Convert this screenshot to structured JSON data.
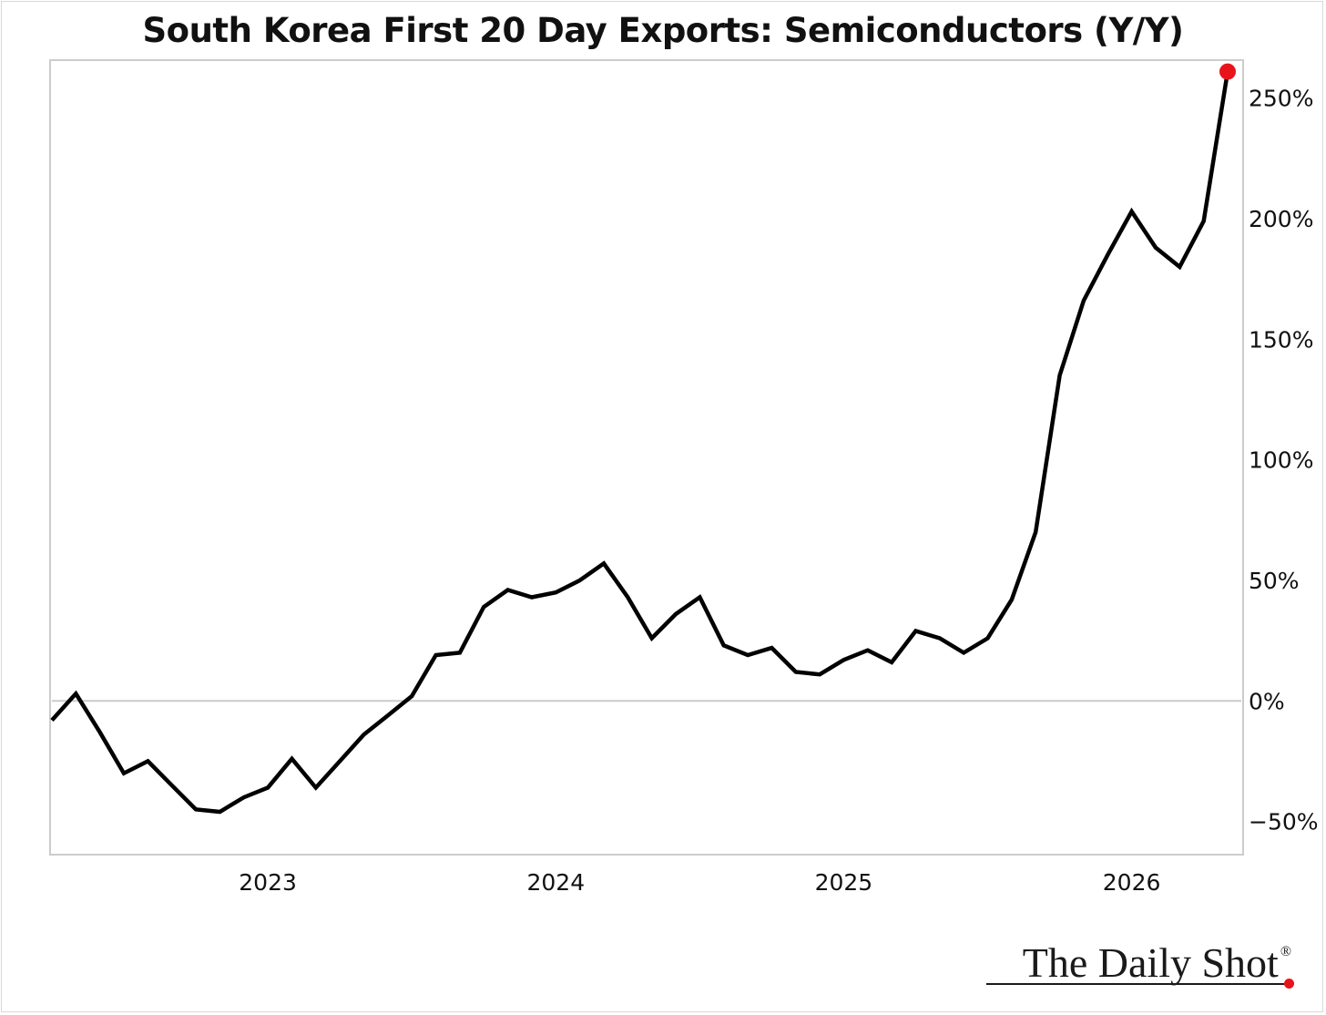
{
  "chart_data": {
    "type": "line",
    "title": "South Korea First 20 Day Exports: Semiconductors (Y/Y)",
    "xlabel": "",
    "ylabel": "",
    "y_unit": "%",
    "ylim": [
      -63,
      265
    ],
    "xlim": [
      "2022-09",
      "2026-10"
    ],
    "x_ticks": [
      "2023",
      "2024",
      "2025",
      "2026"
    ],
    "y_ticks": [
      -50,
      0,
      50,
      100,
      150,
      200,
      250
    ],
    "y_tick_labels": [
      "−50%",
      "0%",
      "50%",
      "100%",
      "150%",
      "200%",
      "250%"
    ],
    "grid": false,
    "zero_line": true,
    "axis_side": "right",
    "series": [
      {
        "color": "#000000",
        "x": [
          "2022-09",
          "2022-10",
          "2022-11",
          "2022-12",
          "2023-01",
          "2023-02",
          "2023-03",
          "2023-04",
          "2023-05",
          "2023-06",
          "2023-07",
          "2023-08",
          "2023-09",
          "2023-10",
          "2023-11",
          "2023-12",
          "2024-01",
          "2024-02",
          "2024-03",
          "2024-04",
          "2024-05",
          "2024-06",
          "2024-07",
          "2024-08",
          "2024-09",
          "2024-10",
          "2024-11",
          "2024-12",
          "2025-01",
          "2025-02",
          "2025-03",
          "2025-04",
          "2025-05",
          "2025-06",
          "2025-07",
          "2025-08",
          "2025-09",
          "2025-10",
          "2025-11",
          "2025-12",
          "2026-01",
          "2026-02",
          "2026-03",
          "2026-04",
          "2026-05",
          "2026-06",
          "2026-07",
          "2026-08",
          "2026-09",
          "2026-10"
        ],
        "values": [
          -8,
          3,
          -13,
          -30,
          -25,
          -35,
          -45,
          -46,
          -40,
          -36,
          -24,
          -36,
          -25,
          -14,
          -6,
          2,
          19,
          20,
          39,
          46,
          43,
          45,
          50,
          57,
          43,
          26,
          36,
          43,
          23,
          19,
          22,
          12,
          11,
          17,
          21,
          16,
          29,
          26,
          20,
          26,
          42,
          70,
          135,
          166,
          185,
          203,
          188,
          180,
          199,
          261
        ]
      }
    ],
    "highlight_last_point": {
      "color": "#e8141c"
    }
  },
  "brand": {
    "name": "The Daily Shot",
    "reg_mark": "®"
  }
}
